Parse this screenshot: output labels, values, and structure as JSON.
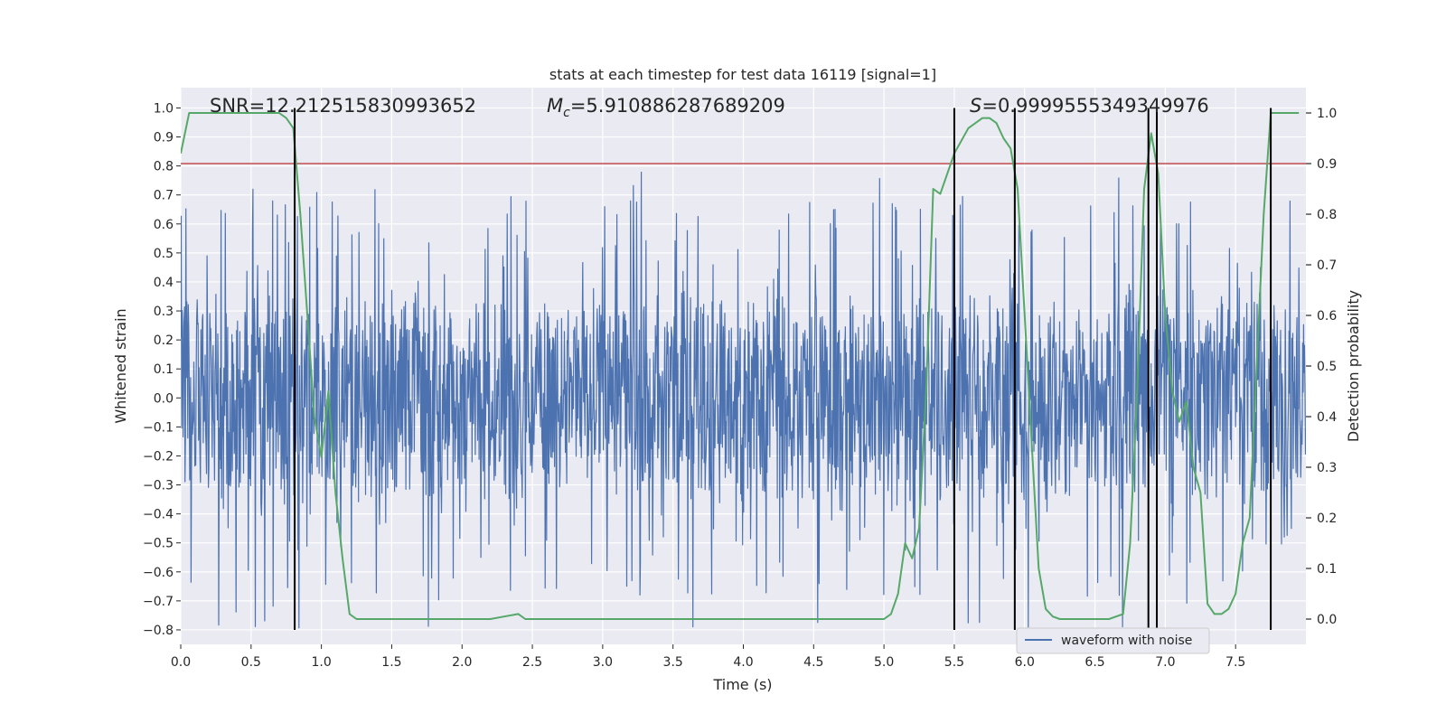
{
  "chart_data": {
    "type": "line",
    "title": "stats at each timestep for test data 16119 [signal=1]",
    "xlabel": "Time (s)",
    "ylabel": "Whitened strain",
    "ylabel_right": "Detection probability",
    "xlim": [
      0.0,
      8.0
    ],
    "ylim": [
      -0.85,
      1.07
    ],
    "ylim_right": [
      -0.05,
      1.05
    ],
    "x_ticks": [
      0.0,
      0.5,
      1.0,
      1.5,
      2.0,
      2.5,
      3.0,
      3.5,
      4.0,
      4.5,
      5.0,
      5.5,
      6.0,
      6.5,
      7.0,
      7.5
    ],
    "x_tick_labels": [
      "0.0",
      "0.5",
      "1.0",
      "1.5",
      "2.0",
      "2.5",
      "3.0",
      "3.5",
      "4.0",
      "4.5",
      "5.0",
      "5.5",
      "6.0",
      "6.5",
      "7.0",
      "7.5"
    ],
    "y_ticks": [
      -0.8,
      -0.7,
      -0.6,
      -0.5,
      -0.4,
      -0.3,
      -0.2,
      -0.1,
      0.0,
      0.1,
      0.2,
      0.3,
      0.4,
      0.5,
      0.6,
      0.7,
      0.8,
      0.9,
      1.0
    ],
    "y_tick_labels": [
      "−0.8",
      "−0.7",
      "−0.6",
      "−0.5",
      "−0.4",
      "−0.3",
      "−0.2",
      "−0.1",
      "0.0",
      "0.1",
      "0.2",
      "0.3",
      "0.4",
      "0.5",
      "0.6",
      "0.7",
      "0.8",
      "0.9",
      "1.0"
    ],
    "y_right_ticks": [
      0.0,
      0.1,
      0.2,
      0.3,
      0.4,
      0.5,
      0.6,
      0.7,
      0.8,
      0.9,
      1.0
    ],
    "y_right_tick_labels": [
      "0.0",
      "0.1",
      "0.2",
      "0.3",
      "0.4",
      "0.5",
      "0.6",
      "0.7",
      "0.8",
      "0.9",
      "1.0"
    ],
    "annotations": {
      "snr": "SNR=12.212515830993652",
      "mc_symbol": "M",
      "mc_sub": "c",
      "mc_value": "=5.910886287689209",
      "s_symbol": "S",
      "s_value": "=0.9999555349349976"
    },
    "legend": {
      "label": "waveform with noise",
      "placement": "lower-right"
    },
    "series": [
      {
        "name": "waveform with noise",
        "axis": "left",
        "color": "#4c72b0",
        "style": "dense noise, core about ±0.3 with spikes up to about ±0.8",
        "seed": 16119,
        "samples": 2400
      },
      {
        "name": "detection probability",
        "axis": "right",
        "color": "#55a868",
        "x": [
          0.0,
          0.06,
          0.1,
          0.2,
          0.3,
          0.4,
          0.5,
          0.6,
          0.7,
          0.75,
          0.8,
          0.85,
          0.9,
          0.95,
          1.0,
          1.05,
          1.1,
          1.15,
          1.2,
          1.25,
          1.3,
          1.4,
          1.6,
          1.8,
          2.0,
          2.2,
          2.3,
          2.4,
          2.45,
          2.5,
          2.8,
          3.0,
          3.5,
          4.0,
          4.5,
          5.0,
          5.05,
          5.1,
          5.15,
          5.2,
          5.25,
          5.3,
          5.35,
          5.4,
          5.45,
          5.5,
          5.6,
          5.7,
          5.75,
          5.8,
          5.85,
          5.9,
          5.95,
          6.0,
          6.05,
          6.1,
          6.15,
          6.2,
          6.25,
          6.3,
          6.4,
          6.5,
          6.6,
          6.7,
          6.75,
          6.8,
          6.85,
          6.9,
          6.95,
          7.0,
          7.05,
          7.1,
          7.15,
          7.2,
          7.25,
          7.3,
          7.35,
          7.4,
          7.45,
          7.5,
          7.55,
          7.6,
          7.65,
          7.7,
          7.75,
          7.8,
          7.85,
          7.9,
          7.95
        ],
        "values": [
          0.92,
          1.0,
          1.0,
          1.0,
          1.0,
          1.0,
          1.0,
          1.0,
          1.0,
          0.99,
          0.97,
          0.8,
          0.6,
          0.4,
          0.32,
          0.45,
          0.25,
          0.12,
          0.01,
          0.0,
          0.0,
          0.0,
          0.0,
          0.0,
          0.0,
          0.0,
          0.005,
          0.01,
          0.0,
          0.0,
          0.0,
          0.0,
          0.0,
          0.0,
          0.0,
          0.0,
          0.01,
          0.05,
          0.15,
          0.12,
          0.18,
          0.45,
          0.85,
          0.84,
          0.88,
          0.92,
          0.97,
          0.99,
          0.99,
          0.98,
          0.95,
          0.93,
          0.85,
          0.6,
          0.35,
          0.1,
          0.02,
          0.005,
          0.0,
          0.0,
          0.0,
          0.0,
          0.0,
          0.01,
          0.15,
          0.45,
          0.85,
          0.96,
          0.88,
          0.6,
          0.45,
          0.39,
          0.43,
          0.3,
          0.25,
          0.03,
          0.01,
          0.01,
          0.02,
          0.05,
          0.15,
          0.2,
          0.5,
          0.8,
          1.0,
          1.0,
          1.0,
          1.0,
          1.0
        ]
      }
    ],
    "threshold": {
      "axis": "right",
      "value": 0.9,
      "color": "#c44e52"
    },
    "event_markers": {
      "times": [
        0.81,
        5.5,
        5.93,
        6.88,
        6.94,
        7.75
      ],
      "y_range": [
        -0.8,
        1.0
      ],
      "color": "#000000"
    }
  },
  "colors": {
    "plot_bg": "#eaeaf2",
    "grid": "#ffffff",
    "text": "#262626"
  }
}
